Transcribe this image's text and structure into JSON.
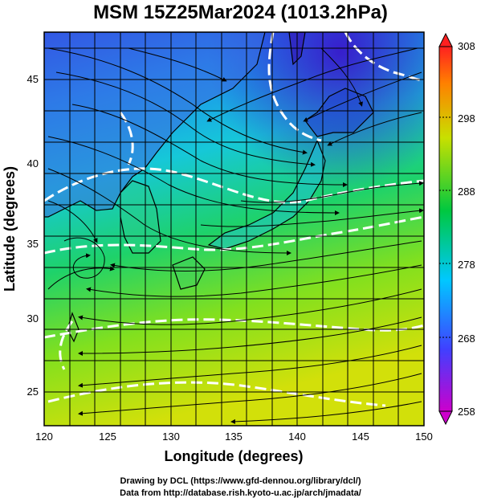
{
  "title": "MSM 15Z25Mar2024 (1013.2hPa)",
  "x_axis": {
    "label": "Longitude (degrees)",
    "ticks": [
      "120",
      "125",
      "130",
      "135",
      "140",
      "145",
      "150"
    ],
    "range": [
      120,
      150
    ]
  },
  "y_axis": {
    "label": "Latitude  (degrees)",
    "ticks": [
      "25",
      "30",
      "35",
      "40",
      "45"
    ],
    "range": [
      22.4,
      47.6
    ]
  },
  "colorbar": {
    "ticks": [
      "258",
      "268",
      "278",
      "288",
      "298",
      "308"
    ],
    "range": [
      258,
      308
    ],
    "colors": [
      "#cc00cc",
      "#4040ff",
      "#00c8ff",
      "#00c840",
      "#c8e000",
      "#ff8000",
      "#ff2020"
    ]
  },
  "footer": {
    "line1": "Drawing by DCL (https://www.gfd-dennou.org/library/dcl/)",
    "line2": "Data from http://database.rish.kyoto-u.ac.jp/arch/jmadata/"
  }
}
